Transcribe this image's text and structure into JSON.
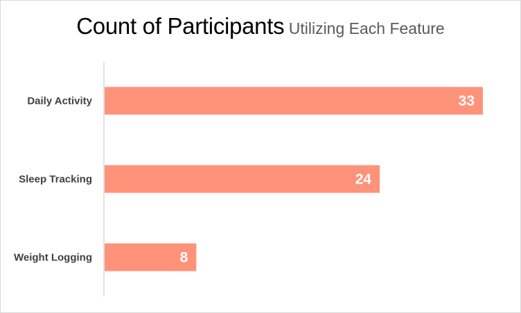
{
  "chart_data": {
    "type": "bar",
    "orientation": "horizontal",
    "title": "Count of Participants",
    "subtitle": "Utilizing Each Feature",
    "categories": [
      "Daily Activity",
      "Sleep Tracking",
      "Weight Logging"
    ],
    "values": [
      33,
      24,
      8
    ],
    "xlim": [
      0,
      35
    ],
    "grid": false,
    "legend": "none",
    "bar_color": "#FF937A",
    "data_label_color": "#FFFFFF"
  }
}
